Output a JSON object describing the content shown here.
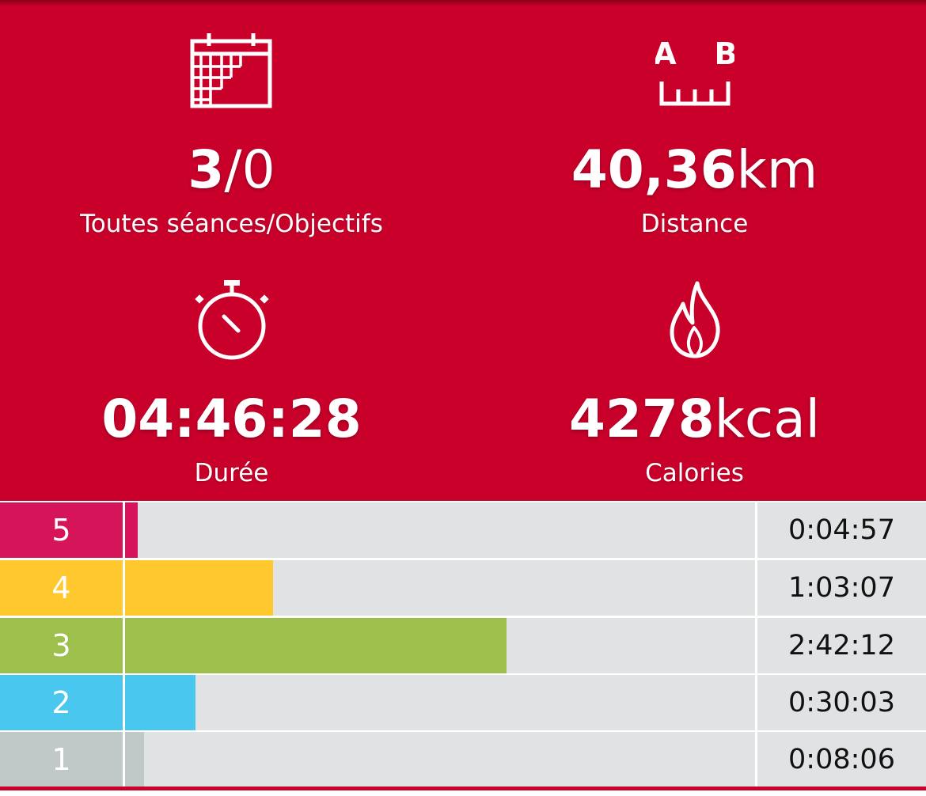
{
  "summary": {
    "sessions": {
      "icon": "calendar-icon",
      "count": "3",
      "separator": "/",
      "goal": "0",
      "label": "Toutes séances/Objectifs"
    },
    "distance": {
      "icon": "distance-a-b-icon",
      "icon_text_a": "A",
      "icon_text_b": "B",
      "value": "40,36",
      "unit": "km",
      "label": "Distance"
    },
    "duration": {
      "icon": "stopwatch-icon",
      "value": "04:46:28",
      "label": "Durée"
    },
    "calories": {
      "icon": "flame-icon",
      "value": "4278",
      "unit": "kcal",
      "label": "Calories"
    }
  },
  "zones": [
    {
      "zone": "5",
      "time": "0:04:57",
      "fraction": 0.02,
      "color": "#d6145a"
    },
    {
      "zone": "4",
      "time": "1:03:07",
      "fraction": 0.235,
      "color": "#ffc82e"
    },
    {
      "zone": "3",
      "time": "2:42:12",
      "fraction": 0.605,
      "color": "#9dbf4b"
    },
    {
      "zone": "2",
      "time": "0:30:03",
      "fraction": 0.112,
      "color": "#4ac7ee"
    },
    {
      "zone": "1",
      "time": "0:08:06",
      "fraction": 0.03,
      "color": "#c0c8c8"
    }
  ],
  "colors": {
    "primary": "#c8002a",
    "track": "#e0e2e3"
  }
}
